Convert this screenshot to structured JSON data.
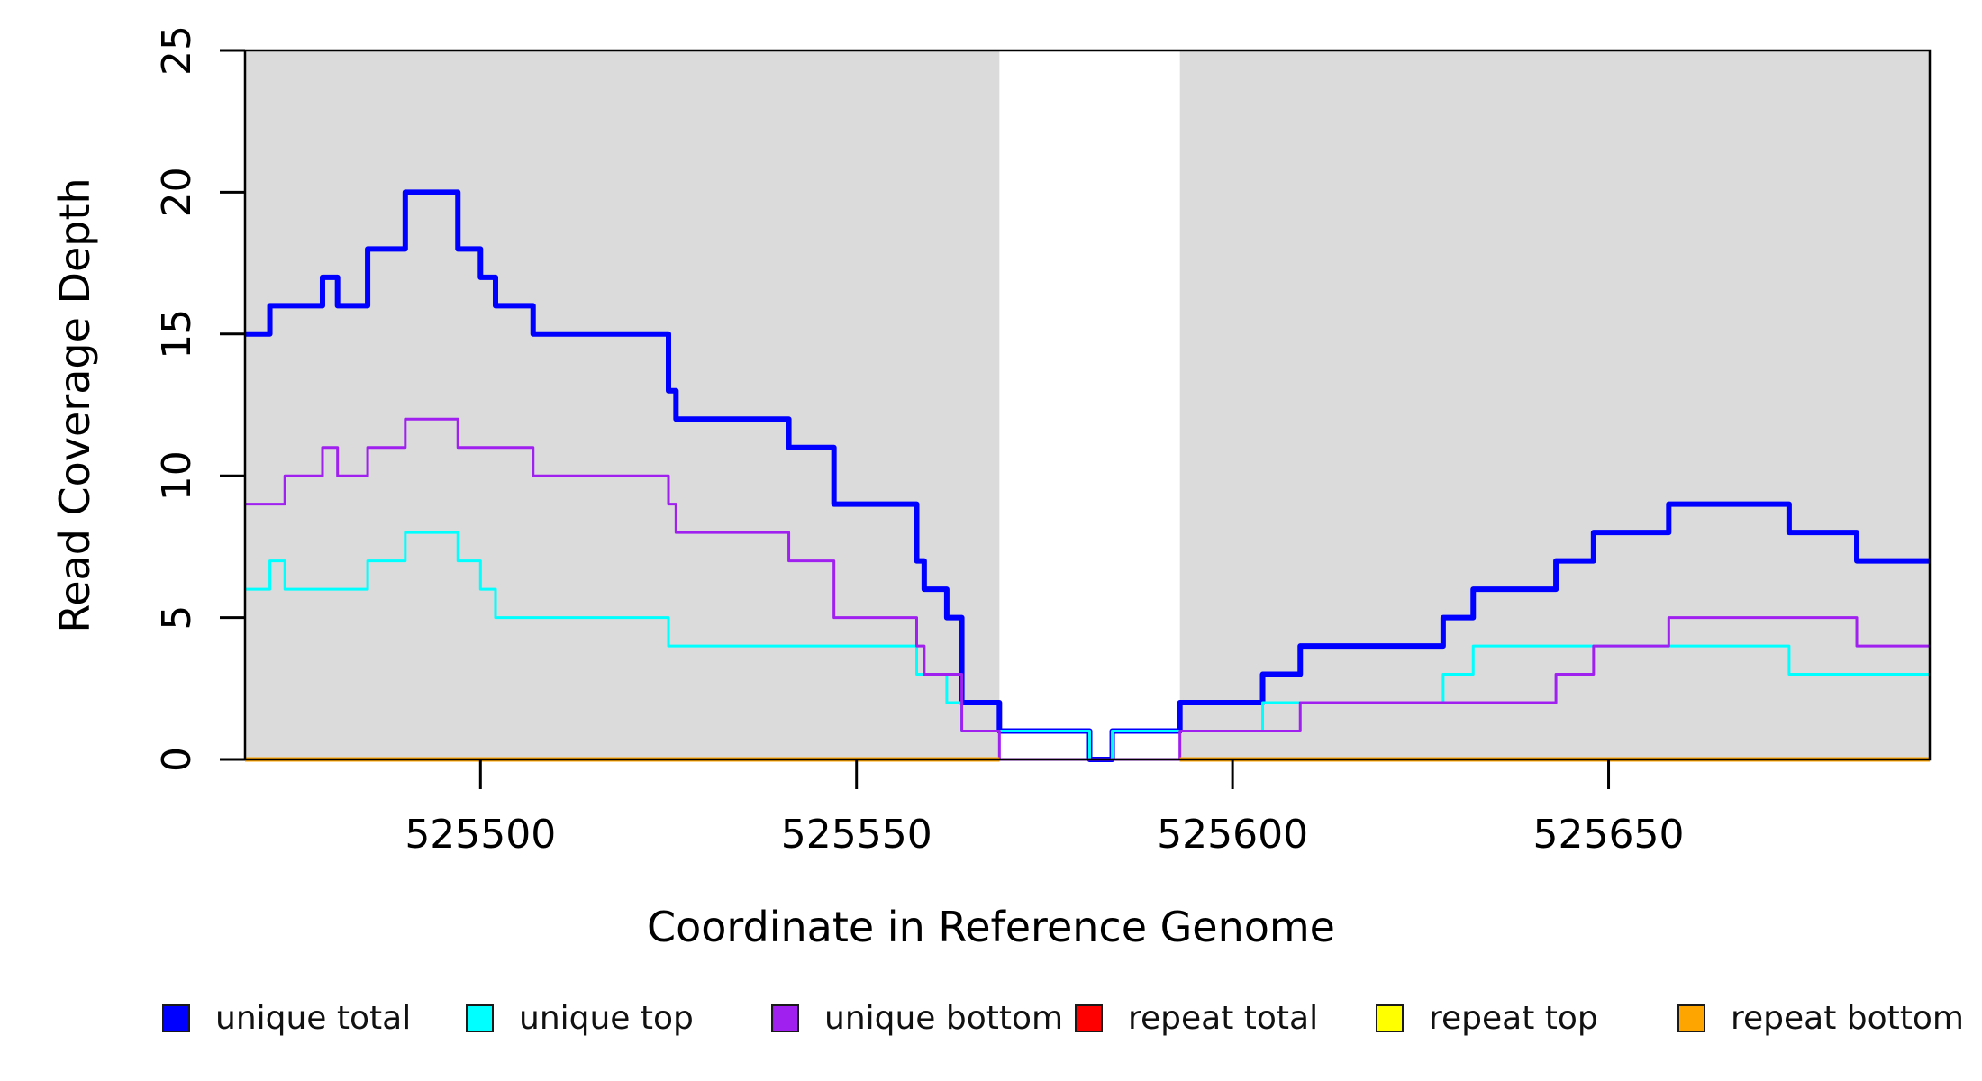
{
  "chart_data": {
    "type": "line",
    "subtype": "step",
    "title": "",
    "xlabel": "Coordinate in Reference Genome",
    "ylabel": "Read Coverage Depth",
    "xlim": [
      525468.7,
      525692.7
    ],
    "ylim": [
      0,
      25
    ],
    "x_ticks": [
      525500,
      525550,
      525600,
      525650
    ],
    "y_ticks": [
      0,
      5,
      10,
      15,
      20,
      25
    ],
    "grid": false,
    "frame_color": "#000000",
    "shade_color": "#DBDBDB",
    "shaded_regions": [
      {
        "name": "left-shaded-region",
        "x0": 525468.7,
        "x1": 525569
      },
      {
        "name": "right-shaded-region",
        "x0": 525593,
        "x1": 525692.7
      }
    ],
    "gap_region": {
      "x0": 525569,
      "x1": 525593
    },
    "series": [
      {
        "name": "unique total",
        "color": "#0000FF",
        "line_width": 6,
        "x_end": 525692.7,
        "steps": [
          [
            525468.7,
            15
          ],
          [
            525472,
            16
          ],
          [
            525479,
            17
          ],
          [
            525481,
            16
          ],
          [
            525485,
            18
          ],
          [
            525490,
            20
          ],
          [
            525497,
            18
          ],
          [
            525500,
            17
          ],
          [
            525502,
            16
          ],
          [
            525507,
            15
          ],
          [
            525525,
            13
          ],
          [
            525526,
            12
          ],
          [
            525541,
            11
          ],
          [
            525547,
            9
          ],
          [
            525558,
            7
          ],
          [
            525559,
            6
          ],
          [
            525562,
            5
          ],
          [
            525564,
            2
          ],
          [
            525569,
            1
          ],
          [
            525581,
            0
          ],
          [
            525584,
            1
          ],
          [
            525593,
            2
          ],
          [
            525604,
            3
          ],
          [
            525609,
            4
          ],
          [
            525628,
            5
          ],
          [
            525632,
            6
          ],
          [
            525643,
            7
          ],
          [
            525648,
            8
          ],
          [
            525658,
            9
          ],
          [
            525674,
            8
          ],
          [
            525683,
            7
          ]
        ]
      },
      {
        "name": "unique top",
        "color": "#00FFFF",
        "line_width": 3,
        "x_end": 525692.7,
        "steps": [
          [
            525468.7,
            6
          ],
          [
            525472,
            7
          ],
          [
            525474,
            6
          ],
          [
            525485,
            7
          ],
          [
            525490,
            8
          ],
          [
            525497,
            7
          ],
          [
            525500,
            6
          ],
          [
            525502,
            5
          ],
          [
            525525,
            4
          ],
          [
            525558,
            3
          ],
          [
            525562,
            2
          ],
          [
            525564,
            1
          ],
          [
            525581,
            0
          ],
          [
            525584,
            1
          ],
          [
            525604,
            2
          ],
          [
            525628,
            3
          ],
          [
            525632,
            4
          ],
          [
            525674,
            3
          ]
        ]
      },
      {
        "name": "unique bottom",
        "color": "#A020F0",
        "line_width": 3,
        "x_end": 525692.7,
        "steps": [
          [
            525468.7,
            9
          ],
          [
            525474,
            10
          ],
          [
            525479,
            11
          ],
          [
            525481,
            10
          ],
          [
            525485,
            11
          ],
          [
            525490,
            12
          ],
          [
            525497,
            11
          ],
          [
            525507,
            10
          ],
          [
            525525,
            9
          ],
          [
            525526,
            8
          ],
          [
            525541,
            7
          ],
          [
            525547,
            5
          ],
          [
            525558,
            4
          ],
          [
            525559,
            3
          ],
          [
            525564,
            1
          ],
          [
            525569,
            0
          ],
          [
            525593,
            1
          ],
          [
            525609,
            2
          ],
          [
            525643,
            3
          ],
          [
            525648,
            4
          ],
          [
            525658,
            5
          ],
          [
            525683,
            4
          ]
        ]
      },
      {
        "name": "repeat total",
        "color": "#FF0000",
        "line_width": 5,
        "value": 0,
        "segments": [
          [
            525468.7,
            525569
          ],
          [
            525593,
            525692.7
          ]
        ]
      },
      {
        "name": "repeat top",
        "color": "#FFFF00",
        "line_width": 5,
        "value": 0,
        "segments": [
          [
            525468.7,
            525569
          ],
          [
            525593,
            525692.7
          ]
        ]
      },
      {
        "name": "repeat bottom",
        "color": "#FFA500",
        "line_width": 5,
        "value": 0,
        "segments": [
          [
            525468.7,
            525569
          ],
          [
            525593,
            525692.7
          ]
        ]
      }
    ],
    "legend": {
      "position": "bottom",
      "entries": [
        "unique total",
        "unique top",
        "unique bottom",
        "repeat total",
        "repeat top",
        "repeat bottom"
      ],
      "colors": [
        "#0000FF",
        "#00FFFF",
        "#A020F0",
        "#FF0000",
        "#FFFF00",
        "#FFA500"
      ]
    }
  }
}
